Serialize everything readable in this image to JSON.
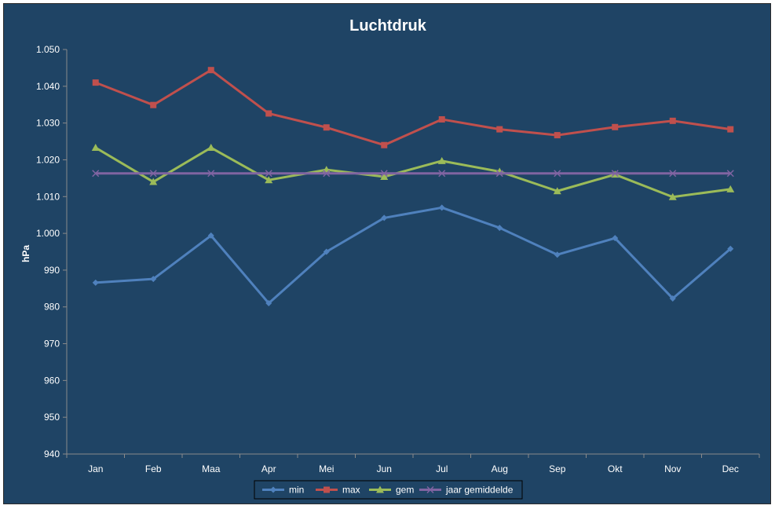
{
  "chart_data": {
    "type": "line",
    "title": "Luchtdruk",
    "xlabel": "",
    "ylabel": "hPa",
    "categories": [
      "Jan",
      "Feb",
      "Maa",
      "Apr",
      "Mei",
      "Jun",
      "Jul",
      "Aug",
      "Sep",
      "Okt",
      "Nov",
      "Dec"
    ],
    "ylim": [
      940,
      1050
    ],
    "yticks": [
      940,
      950,
      960,
      970,
      980,
      990,
      1000,
      1010,
      1020,
      1030,
      1040,
      1050
    ],
    "ytick_labels": [
      "940",
      "950",
      "960",
      "970",
      "980",
      "990",
      "1.000",
      "1.010",
      "1.020",
      "1.030",
      "1.040",
      "1.050"
    ],
    "grid": false,
    "legend_position": "bottom",
    "series": [
      {
        "name": "min",
        "color": "#4f81bd",
        "marker": "diamond",
        "values": [
          986.6,
          987.6,
          999.4,
          981.0,
          995.0,
          1004.2,
          1007.0,
          1001.5,
          994.2,
          998.7,
          982.3,
          995.8
        ]
      },
      {
        "name": "max",
        "color": "#c0504d",
        "marker": "square",
        "values": [
          1041.0,
          1034.9,
          1044.4,
          1032.6,
          1028.8,
          1024.0,
          1031.0,
          1028.3,
          1026.7,
          1028.9,
          1030.6,
          1028.3
        ]
      },
      {
        "name": "gem",
        "color": "#9bbb59",
        "marker": "triangle",
        "values": [
          1023.3,
          1014.0,
          1023.3,
          1014.5,
          1017.3,
          1015.4,
          1019.7,
          1016.8,
          1011.5,
          1016.0,
          1009.9,
          1012.0
        ]
      },
      {
        "name": "jaar gemiddelde",
        "color": "#8064a2",
        "marker": "x",
        "values": [
          1016.3,
          1016.3,
          1016.3,
          1016.3,
          1016.3,
          1016.3,
          1016.3,
          1016.3,
          1016.3,
          1016.3,
          1016.3,
          1016.3
        ]
      }
    ]
  }
}
